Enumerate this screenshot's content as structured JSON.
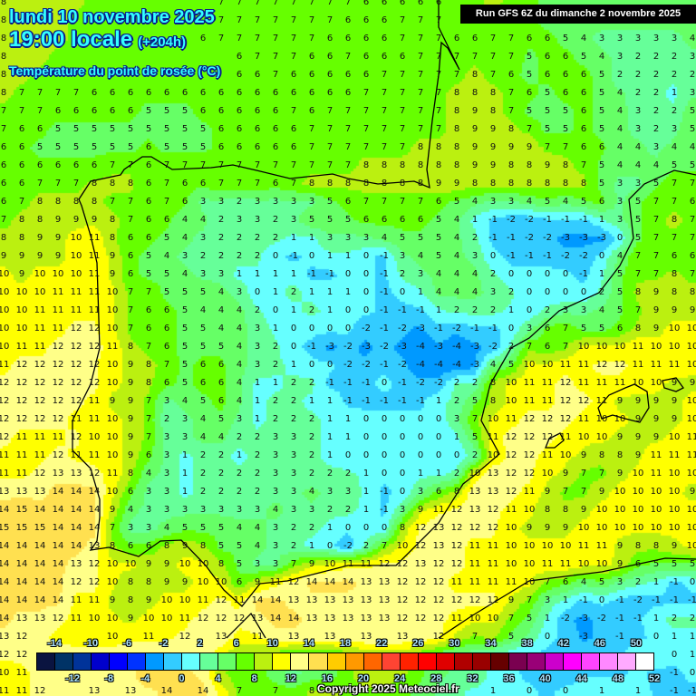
{
  "header": {
    "date": "lundi 10 novembre 2025",
    "time": "19:00 locale",
    "lead": "(+204h)",
    "parameter": "Température du point de rosée (°C)",
    "run": "Run GFS 6Z du dimanche 2 novembre 2025"
  },
  "copyright": "Copyright 2025 Meteociel.fr",
  "legend": {
    "unit": "°C",
    "min": -16,
    "step": 2,
    "colors": [
      "#0a1440",
      "#003366",
      "#003399",
      "#0000cc",
      "#0000ff",
      "#0033ff",
      "#0099ff",
      "#33ccff",
      "#66ffff",
      "#66ff99",
      "#66ff66",
      "#66ff00",
      "#bbf010",
      "#ffff00",
      "#ffff88",
      "#ffe050",
      "#ffcc00",
      "#ff9900",
      "#ff6600",
      "#ff4433",
      "#ff2200",
      "#ff0000",
      "#e00000",
      "#b00000",
      "#990000",
      "#660000",
      "#7a0050",
      "#990077",
      "#cc00cc",
      "#ff00ff",
      "#ff44ff",
      "#ff88ff",
      "#ffaaff",
      "#ffffff"
    ],
    "top_labels": [
      "-14",
      "-10",
      "-6",
      "-2",
      "2",
      "6",
      "10",
      "14",
      "18",
      "22",
      "26",
      "30",
      "34",
      "38",
      "42",
      "46",
      "50"
    ],
    "bottom_labels": [
      "-12",
      "-8",
      "-4",
      "0",
      "4",
      "8",
      "12",
      "16",
      "20",
      "24",
      "28",
      "32",
      "36",
      "40",
      "44",
      "48",
      "52"
    ]
  },
  "grid_values": [
    "8 8 8 8 8 7 7 7 7 7 7 7 7 7 7 7 7 7 7 7 6 6 6 6 6 6 7 8 7 6 5 4 4 4 4 4 4 4 4",
    "8 8 8 8 7 7 7 7 7 7 7 7 7 7 7 7 7 7 7 6 6 6 7 7 7 6 7 7 6 6 5 5 4 4 4 4 4 4 4",
    "8 8 8 8 7 7 7 7 7 7 7 6 7 7 7 7 7 7 6 6 6 6 7 7 7 6 6 7 7 6 6 5 4 3 3 3 3 3 4",
    "8 8 8 7 7 7 7 7 6 6 6 6 6 6 7 7 7 6 6 7 6 6 6 7 7 7 7 7 7 5 6 6 5 4 3 2 2 2 3",
    "8 8 7 7 7 7 7 7 7 6 6 6 6 6 6 7 6 6 6 6 6 7 7 7 7 7 8 7 6 5 6 6 6 5 2 2 2 2 2",
    "8 7 7 7 7 6 6 6 6 6 6 6 6 6 6 6 6 6 6 6 7 7 7 7 7 8 8 8 7 6 5 6 6 5 4 2 2 1 3",
    "7 7 7 6 6 6 6 6 5 5 5 6 6 6 6 6 7 6 7 7 7 7 7 7 7 8 9 8 7 5 5 5 6 5 4 3 2 2 5",
    "7 6 6 5 5 5 5 5 5 5 5 5 6 6 6 6 6 7 7 7 7 7 7 7 7 8 9 9 8 7 5 5 6 5 4 3 2 3 5",
    "6 6 5 5 5 5 5 5 6 5 5 5 6 6 6 6 6 7 7 7 7 7 7 8 8 8 9 9 9 9 7 7 6 6 4 4 3 4 4",
    "6 6 6 6 6 6 7 7 6 7 7 7 7 7 7 7 7 7 7 7 8 8 8 8 8 8 9 9 8 8 9 8 7 5 4 4 4 5 5",
    "6 6 7 7 7 8 8 8 6 7 6 6 7 7 7 6 7 8 8 8 8 8 8 8 9 9 8 8 8 8 8 8 8 5 3 3 5 7 7",
    "6 7 8 8 8 8 7 7 6 7 6 3 3 2 3 3 3 3 5 6 7 7 7 7 6 5 4 3 3 4 5 4 5 6 3 5 7 7 6",
    "7 8 8 9 9 9 8 7 6 6 4 4 2 3 3 2 3 5 5 5 6 6 6 6 5 4 1 -1 -2 -2 -1 -1 -1 1 3 5 7 8 7",
    "8 8 9 9 10 11 8 6 6 5 4 3 2 2 2 2 1 1 3 3 3 4 5 5 5 4 2 -1 -1 -2 -2 -3 -3 -3 0 5 7 7 7",
    "9 9 9 9 10 11 9 6 5 4 3 2 2 2 2 0 -1 0 1 1 0 -1 3 4 5 4 3 0 -1 -1 -1 -2 -2 0 4 7 7 6 6",
    "10 9 10 10 10 11 9 6 5 5 4 3 3 1 1 1 1 -1 -1 0 0 -1 2 3 4 4 4 2 0 0 0 0 -1 1 5 7 7 8 7",
    "10 10 10 11 11 11 10 7 7 5 5 5 4 3 0 1 2 1 1 1 0 -1 0 1 4 4 4 3 2 0 0 0 0 2 5 8 9 8 8",
    "10 10 11 11 11 11 10 7 6 6 5 4 4 4 2 0 1 2 1 0 0 -1 -1 -1 1 2 2 2 1 0 2 3 3 4 5 7 9 9 9",
    "10 10 11 11 12 12 10 7 6 6 5 5 4 4 3 1 0 0 0 0 -2 -1 -2 -3 -1 -2 -1 -1 0 3 6 7 5 5 6 8 9 10 10",
    "10 11 11 12 12 12 11 8 7 6 5 5 5 4 3 2 0 -1 -3 -2 -3 -2 -3 -4 -3 -4 -3 -2 2 7 6 7 10 10 10 11 10 10 10",
    "11 12 12 12 12 12 10 9 8 7 5 6 6 4 3 2 1 0 0 -2 -2 -1 -2 -4 -4 -4 -3 4 5 10 10 11 11 12 12 11 11 11 10",
    "12 12 12 12 12 12 10 9 8 6 5 6 6 4 1 1 2 2 -1 -1 -1 0 -1 -2 -2 2 2 8 10 11 11 12 11 11 11 10 10 9 9",
    "12 12 12 12 12 11 9 9 7 3 4 5 6 4 1 2 2 1 1 -1 -1 -1 -1 -1 1 2 5 8 10 11 11 12 12 11 9 9 9 9 10",
    "12 12 12 12 11 11 10 9 7 2 3 4 5 3 1 2 2 2 1 1 0 0 0 0 0 3 7 10 11 12 12 12 11 10 10 9 9 9 10",
    "12 11 11 11 12 10 10 9 7 3 3 4 4 2 2 3 3 2 1 1 0 0 0 0 0 1 5 11 12 12 12 11 10 10 9 9 9 10 11",
    "11 11 11 12 11 11 10 9 6 3 1 2 2 1 2 3 3 2 1 0 0 0 0 0 0 0 2 10 12 12 11 10 9 8 8 9 11 11 11",
    "11 11 12 13 13 12 11 8 4 3 1 2 2 2 2 3 3 2 2 2 1 0 0 1 1 2 10 13 12 12 10 9 7 7 9 10 11 10 10",
    "13 13 13 14 14 14 10 6 3 3 1 2 2 2 2 3 3 4 3 3 1 -1 0 3 6 8 13 13 12 11 9 7 7 9 10 10 10 10 9",
    "14 15 14 14 14 14 9 4 3 3 3 3 3 3 3 4 3 3 2 2 1 -1 3 9 11 12 13 12 11 10 8 8 9 10 10 10 10 10 10",
    "15 15 15 14 14 14 7 3 3 4 5 5 5 4 4 3 2 2 1 0 0 0 8 12 13 12 12 12 10 9 9 9 10 10 10 10 10 10 10",
    "14 14 14 14 14 13 8 6 6 8 9 8 5 5 4 3 2 1 0 -2 2 7 10 12 13 12 11 11 10 10 10 10 11 11 9 8 8 9 10",
    "14 14 14 14 13 12 10 10 9 9 10 10 8 5 3 3 7 9 10 11 11 12 12 13 12 12 11 11 10 10 11 11 10 10 9 6 5 5 5",
    "14 14 14 14 12 12 10 8 8 9 9 10 10 6 9 11 12 14 14 14 13 13 12 12 12 11 11 11 11 10 7 6 4 5 3 2 1 -1 0",
    "14 14 14 14 11 11 9 8 9 10 10 11 12 11 14 14 13 13 13 13 13 13 12 12 12 12 12 12 9 7 3 1 -1 0 -1 -2 -1 -1 -1",
    "14 13 13 12 11 10 10 9 10 10 11 12 12 12 13 14 14 13 13 13 13 13 12 12 12 11 10 10 7 5 1 -2 -3 -2 -1 -1 1 2 2",
    "13 12 12 11 10 10 10 11 11 11 12 13 13 11 11 13 13 13 13 13 13 13 13 13 12 9 7 8 5 3 0 -1 -3 -2 -1 -1 0 1 1",
    "12 12 12 13 13 13 13 13 14 14 13 13 10 7 7 6 5 5 5 6 8 8 8 6 4 3 2 1 0 -1 -1 -1 -1 0 -1 1 1 0 1",
    "10 11 12 13 13 12 12 13 15 15 14 13 8 6 7 4 3 4 4 7 9 9 8 6 4 3 3 1 0 -1 -1 -2 -1 -1 -1 0 -1 -1 0",
    "11 11 12 12 13 13 13 13 13 14 15 14 11 7 7 7 6 8 8 7 7 7 6 5 3 2 1 1 0 0 -1 0 1 1 1 1 -1 -1 -1"
  ]
}
